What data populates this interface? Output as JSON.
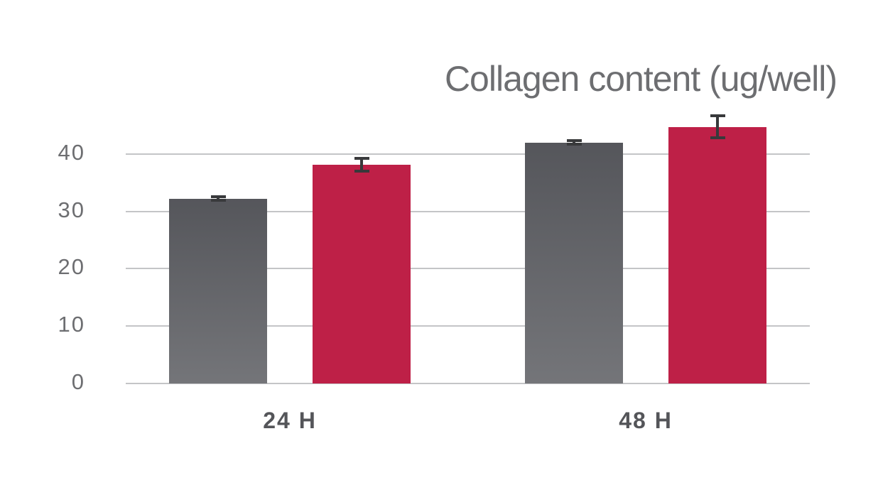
{
  "chart_data": {
    "type": "bar",
    "title": "Collagen content (ug/well)",
    "categories": [
      "24 H",
      "48 H"
    ],
    "series": [
      {
        "name": "gray",
        "color_top": "#55565b",
        "color_bottom": "#747579",
        "values": [
          32.2,
          42.0
        ],
        "errors": [
          0.3,
          0.3
        ]
      },
      {
        "name": "crimson",
        "color": "#be2047",
        "values": [
          38.1,
          44.7
        ],
        "errors": [
          1.1,
          1.9
        ]
      }
    ],
    "yticks": [
      0,
      10,
      20,
      30,
      40
    ],
    "ylim": [
      0,
      48
    ],
    "grid": "horizontal",
    "legend": "none",
    "xlabel": "",
    "ylabel": ""
  },
  "colors": {
    "background": "#ffffff",
    "gray_bar_top": "#55565b",
    "gray_bar_bottom": "#747579",
    "crimson_bar": "#be2047",
    "gridline": "#c4c5c7",
    "error_bar": "#38393b",
    "title_text": "#6d6e71",
    "axis_tick_text": "#6d6e71",
    "x_label_text": "#545559"
  }
}
